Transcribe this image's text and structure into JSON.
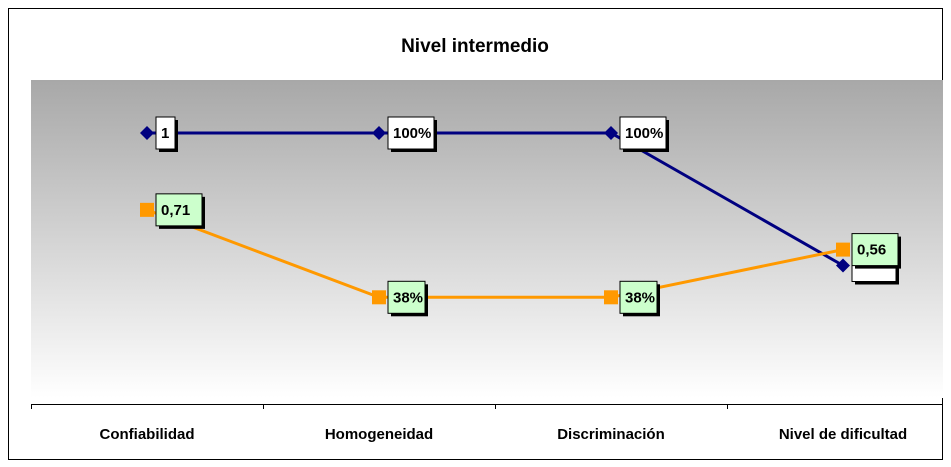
{
  "chart_data": {
    "type": "line",
    "title": "Nivel intermedio",
    "categories": [
      "Confiabilidad",
      "Homogeneidad",
      "Discriminación",
      "Nivel de dificultad"
    ],
    "series": [
      {
        "color": "#000080",
        "marker": "diamond",
        "label_fill": "#ffffff",
        "values": [
          1,
          1,
          1,
          0.5
        ],
        "value_labels": [
          "1",
          "100%",
          "100%",
          null
        ]
      },
      {
        "color": "#ff9900",
        "marker": "square",
        "label_fill": "#ccffcc",
        "values": [
          0.71,
          0.38,
          0.38,
          0.56
        ],
        "value_labels": [
          "0,71",
          "38%",
          "38%",
          "0,56"
        ]
      }
    ],
    "ylim": [
      0,
      1.2
    ]
  }
}
